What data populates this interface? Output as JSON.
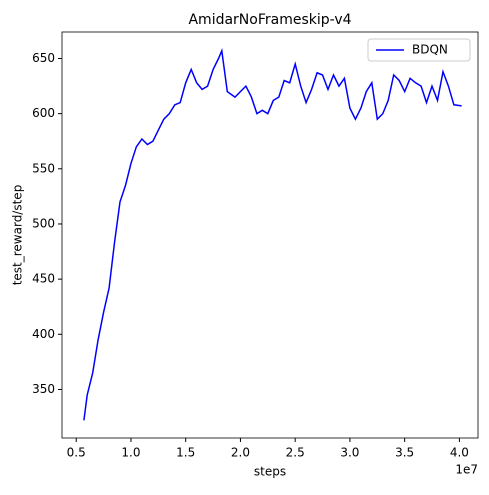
{
  "chart_data": {
    "type": "line",
    "title": "AmidarNoFrameskip-v4",
    "x_label": "steps",
    "y_label": "test_reward/step",
    "x_offset_label": "1e7",
    "x": [
      5700000,
      6000000,
      6500000,
      7000000,
      7500000,
      8000000,
      8500000,
      9000000,
      9500000,
      10000000,
      10500000,
      11000000,
      11500000,
      12000000,
      12500000,
      13000000,
      13500000,
      14000000,
      14500000,
      15000000,
      15500000,
      16000000,
      16500000,
      17000000,
      17500000,
      18000000,
      18300000,
      18800000,
      19500000,
      20000000,
      20500000,
      21000000,
      21500000,
      22000000,
      22500000,
      23000000,
      23500000,
      24000000,
      24500000,
      25000000,
      25500000,
      26000000,
      26500000,
      27000000,
      27500000,
      28000000,
      28500000,
      29000000,
      29500000,
      30000000,
      30500000,
      31000000,
      31500000,
      32000000,
      32500000,
      33000000,
      33500000,
      34000000,
      34500000,
      35000000,
      35500000,
      36000000,
      36500000,
      37000000,
      37500000,
      38000000,
      38500000,
      39000000,
      39500000,
      40200000
    ],
    "series": [
      {
        "name": "BDQN",
        "color": "#0000ff",
        "values": [
          322,
          345,
          365,
          395,
          420,
          442,
          483,
          520,
          535,
          555,
          570,
          577,
          572,
          575,
          585,
          595,
          600,
          608,
          610,
          628,
          640,
          628,
          622,
          625,
          640,
          650,
          657,
          620,
          615,
          620,
          625,
          615,
          600,
          603,
          600,
          612,
          615,
          630,
          628,
          645,
          625,
          610,
          622,
          637,
          635,
          622,
          635,
          625,
          632,
          605,
          595,
          605,
          620,
          628,
          595,
          600,
          612,
          635,
          630,
          620,
          632,
          628,
          625,
          610,
          625,
          612,
          638,
          625,
          608,
          607
        ]
      }
    ],
    "xlim": [
      3700000,
      41700000
    ],
    "xticks": [
      {
        "value": 5000000,
        "label": "0.5"
      },
      {
        "value": 10000000,
        "label": "1.0"
      },
      {
        "value": 15000000,
        "label": "1.5"
      },
      {
        "value": 20000000,
        "label": "2.0"
      },
      {
        "value": 25000000,
        "label": "2.5"
      },
      {
        "value": 30000000,
        "label": "3.0"
      },
      {
        "value": 35000000,
        "label": "3.5"
      },
      {
        "value": 40000000,
        "label": "4.0"
      }
    ],
    "ylim": [
      306,
      674
    ],
    "yticks": [
      350,
      400,
      450,
      500,
      550,
      600,
      650
    ],
    "legend": "upper right",
    "grid": false
  }
}
